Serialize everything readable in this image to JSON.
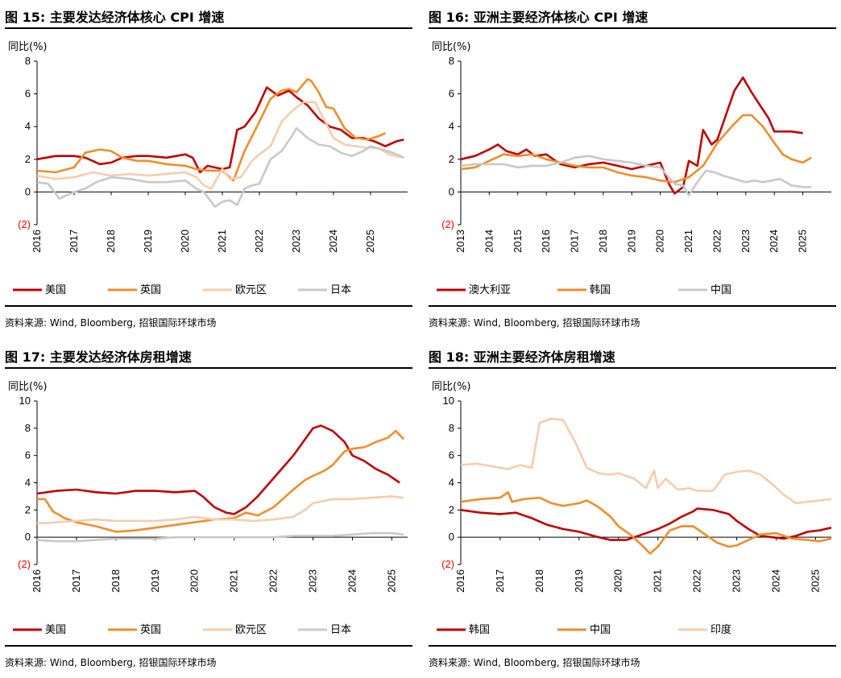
{
  "colors": {
    "red": "#C00000",
    "orange": "#F28C28",
    "peach": "#F8CBAD",
    "gray": "#C8C8C8",
    "neg": "#FF0000"
  },
  "source": "资料来源: Wind, Bloomberg, 招银国际环球市场",
  "chart_data": [
    {
      "type": "line",
      "title": "图 15: 主要发达经济体核心 CPI 增速",
      "ylabel": "同比(%)",
      "ylim": [
        -2,
        8
      ],
      "yticks": [
        8,
        6,
        4,
        2,
        0,
        -2
      ],
      "ytick_labels": [
        "8",
        "6",
        "4",
        "2",
        "0",
        "(2)"
      ],
      "xlim": [
        2016,
        2026
      ],
      "xticks": [
        "2016",
        "2017",
        "2018",
        "2019",
        "2020",
        "2021",
        "2022",
        "2023",
        "2024",
        "2025"
      ],
      "legend": "bottom",
      "series": [
        {
          "name": "美国",
          "color": "red",
          "x": [
            2016.0,
            2016.5,
            2017.0,
            2017.3,
            2017.7,
            2018.0,
            2018.3,
            2018.7,
            2019.0,
            2019.5,
            2020.0,
            2020.2,
            2020.4,
            2020.6,
            2021.0,
            2021.2,
            2021.4,
            2021.6,
            2021.9,
            2022.2,
            2022.5,
            2022.8,
            2023.0,
            2023.3,
            2023.6,
            2023.9,
            2024.2,
            2024.5,
            2024.8,
            2025.1,
            2025.4,
            2025.7,
            2025.9
          ],
          "y": [
            2.0,
            2.2,
            2.2,
            2.1,
            1.7,
            1.8,
            2.1,
            2.2,
            2.2,
            2.1,
            2.3,
            2.1,
            1.2,
            1.6,
            1.4,
            1.5,
            3.8,
            4.0,
            4.9,
            6.4,
            5.9,
            6.2,
            5.8,
            5.3,
            4.5,
            4.0,
            3.8,
            3.3,
            3.3,
            3.1,
            2.8,
            3.1,
            3.2
          ]
        },
        {
          "name": "英国",
          "color": "orange",
          "x": [
            2016.0,
            2016.5,
            2017.0,
            2017.3,
            2017.7,
            2018.0,
            2018.3,
            2018.7,
            2019.0,
            2019.5,
            2020.0,
            2020.3,
            2020.6,
            2021.0,
            2021.3,
            2021.6,
            2022.0,
            2022.3,
            2022.6,
            2022.8,
            2023.0,
            2023.3,
            2023.4,
            2023.6,
            2023.8,
            2024.0,
            2024.3,
            2024.6,
            2024.9,
            2025.2,
            2025.4
          ],
          "y": [
            1.3,
            1.2,
            1.5,
            2.4,
            2.6,
            2.5,
            2.1,
            1.9,
            1.9,
            1.7,
            1.6,
            1.4,
            1.3,
            1.3,
            0.7,
            2.5,
            4.3,
            5.7,
            6.2,
            6.3,
            6.1,
            6.9,
            6.8,
            6.1,
            5.2,
            5.1,
            3.9,
            3.3,
            3.2,
            3.4,
            3.6
          ]
        },
        {
          "name": "欧元区",
          "color": "peach",
          "x": [
            2016.0,
            2016.5,
            2017.0,
            2017.5,
            2018.0,
            2018.5,
            2019.0,
            2019.5,
            2020.0,
            2020.3,
            2020.5,
            2020.7,
            2021.0,
            2021.2,
            2021.5,
            2021.8,
            2022.0,
            2022.3,
            2022.6,
            2022.9,
            2023.2,
            2023.5,
            2023.8,
            2024.0,
            2024.3,
            2024.6,
            2024.9,
            2025.2,
            2025.5,
            2025.9
          ],
          "y": [
            1.0,
            0.8,
            0.9,
            1.2,
            1.0,
            1.1,
            1.0,
            1.1,
            1.2,
            0.9,
            0.4,
            0.2,
            1.4,
            0.8,
            0.9,
            1.9,
            2.3,
            2.8,
            4.3,
            5.0,
            5.5,
            5.5,
            4.2,
            3.3,
            2.9,
            2.8,
            2.7,
            2.7,
            2.3,
            2.1
          ]
        },
        {
          "name": "日本",
          "color": "gray",
          "x": [
            2016.0,
            2016.3,
            2016.6,
            2017.0,
            2017.3,
            2017.6,
            2018.0,
            2018.5,
            2019.0,
            2019.5,
            2020.0,
            2020.3,
            2020.5,
            2020.8,
            2021.0,
            2021.2,
            2021.4,
            2021.6,
            2021.8,
            2022.0,
            2022.3,
            2022.6,
            2022.9,
            2023.0,
            2023.3,
            2023.6,
            2023.9,
            2024.2,
            2024.5,
            2024.8,
            2025.0,
            2025.3,
            2025.6,
            2025.9
          ],
          "y": [
            0.6,
            0.5,
            -0.4,
            0.0,
            0.2,
            0.6,
            0.9,
            0.8,
            0.6,
            0.6,
            0.7,
            0.2,
            0.0,
            -0.9,
            -0.6,
            -0.5,
            -0.8,
            0.2,
            0.4,
            0.5,
            2.0,
            2.5,
            3.5,
            3.9,
            3.3,
            2.9,
            2.8,
            2.4,
            2.2,
            2.5,
            2.8,
            2.6,
            2.4,
            2.1
          ]
        }
      ]
    },
    {
      "type": "line",
      "title": "图 16: 亚洲主要经济体核心 CPI 增速",
      "ylabel": "同比(%)",
      "ylim": [
        -2,
        8
      ],
      "yticks": [
        8,
        6,
        4,
        2,
        0,
        -2
      ],
      "ytick_labels": [
        "8",
        "6",
        "4",
        "2",
        "0",
        "(2)"
      ],
      "xlim": [
        2013,
        2026
      ],
      "xticks": [
        "2013",
        "2014",
        "2015",
        "2016",
        "2017",
        "2018",
        "2019",
        "2020",
        "2021",
        "2022",
        "2023",
        "2024",
        "2025"
      ],
      "legend": "bottom",
      "series": [
        {
          "name": "澳大利亚",
          "color": "red",
          "x": [
            2013.0,
            2013.5,
            2014.0,
            2014.3,
            2014.6,
            2015.0,
            2015.3,
            2015.6,
            2016.0,
            2016.5,
            2017.0,
            2017.5,
            2018.0,
            2018.5,
            2019.0,
            2019.5,
            2020.0,
            2020.3,
            2020.5,
            2020.8,
            2021.0,
            2021.3,
            2021.5,
            2021.8,
            2022.0,
            2022.3,
            2022.6,
            2022.9,
            2023.2,
            2023.5,
            2023.8,
            2024.0,
            2024.3,
            2024.6,
            2025.0
          ],
          "y": [
            2.0,
            2.2,
            2.6,
            2.9,
            2.5,
            2.3,
            2.6,
            2.2,
            2.3,
            1.7,
            1.5,
            1.7,
            1.8,
            1.6,
            1.4,
            1.6,
            1.8,
            0.5,
            -0.1,
            0.3,
            1.9,
            1.6,
            3.8,
            2.9,
            3.2,
            4.7,
            6.2,
            7.0,
            6.1,
            5.3,
            4.5,
            3.7,
            3.7,
            3.7,
            3.6
          ]
        },
        {
          "name": "韩国",
          "color": "orange",
          "x": [
            2013.0,
            2013.5,
            2014.0,
            2014.5,
            2015.0,
            2015.5,
            2016.0,
            2016.5,
            2017.0,
            2017.5,
            2018.0,
            2018.5,
            2019.0,
            2019.5,
            2020.0,
            2020.5,
            2021.0,
            2021.5,
            2022.0,
            2022.5,
            2022.9,
            2023.2,
            2023.6,
            2024.0,
            2024.3,
            2024.6,
            2025.0,
            2025.3
          ],
          "y": [
            1.4,
            1.5,
            1.9,
            2.3,
            2.2,
            2.3,
            2.0,
            1.8,
            1.6,
            1.5,
            1.5,
            1.2,
            1.0,
            0.9,
            0.7,
            0.6,
            0.9,
            1.6,
            3.0,
            4.0,
            4.7,
            4.7,
            4.0,
            3.0,
            2.3,
            2.0,
            1.8,
            2.1
          ]
        },
        {
          "name": "中国",
          "color": "gray",
          "x": [
            2013.0,
            2013.5,
            2014.0,
            2014.5,
            2015.0,
            2015.5,
            2016.0,
            2016.5,
            2017.0,
            2017.5,
            2018.0,
            2018.5,
            2019.0,
            2019.5,
            2020.0,
            2020.5,
            2020.8,
            2021.0,
            2021.3,
            2021.6,
            2021.9,
            2022.2,
            2022.6,
            2023.0,
            2023.3,
            2023.6,
            2023.9,
            2024.2,
            2024.6,
            2025.0,
            2025.3
          ],
          "y": [
            1.6,
            1.7,
            1.7,
            1.7,
            1.5,
            1.6,
            1.6,
            1.8,
            2.1,
            2.2,
            2.0,
            1.9,
            1.8,
            1.6,
            1.5,
            0.5,
            0.4,
            -0.2,
            0.6,
            1.3,
            1.2,
            1.0,
            0.8,
            0.6,
            0.7,
            0.6,
            0.7,
            0.8,
            0.4,
            0.3,
            0.3
          ]
        }
      ]
    },
    {
      "type": "line",
      "title": "图 17: 主要发达经济体房租增速",
      "ylabel": "同比(%)",
      "ylim": [
        -2,
        10
      ],
      "yticks": [
        10,
        8,
        6,
        4,
        2,
        0,
        -2
      ],
      "ytick_labels": [
        "10",
        "8",
        "6",
        "4",
        "2",
        "0",
        "(2)"
      ],
      "xlim": [
        2016,
        2025.4
      ],
      "xticks": [
        "2016",
        "2017",
        "2018",
        "2019",
        "2020",
        "2021",
        "2022",
        "2023",
        "2024",
        "2025"
      ],
      "legend": "bottom",
      "series": [
        {
          "name": "美国",
          "color": "red",
          "x": [
            2016.0,
            2016.5,
            2017.0,
            2017.5,
            2018.0,
            2018.5,
            2019.0,
            2019.5,
            2020.0,
            2020.2,
            2020.5,
            2020.8,
            2021.0,
            2021.3,
            2021.6,
            2021.9,
            2022.2,
            2022.5,
            2022.8,
            2023.0,
            2023.2,
            2023.5,
            2023.8,
            2024.0,
            2024.3,
            2024.6,
            2024.9,
            2025.2
          ],
          "y": [
            3.2,
            3.4,
            3.5,
            3.3,
            3.2,
            3.4,
            3.4,
            3.3,
            3.4,
            3.0,
            2.2,
            1.8,
            1.7,
            2.2,
            3.0,
            4.0,
            5.0,
            6.0,
            7.2,
            8.0,
            8.2,
            7.8,
            7.0,
            6.0,
            5.6,
            5.0,
            4.6,
            4.0
          ]
        },
        {
          "name": "英国",
          "color": "orange",
          "x": [
            2016.0,
            2016.2,
            2016.4,
            2016.7,
            2017.0,
            2017.5,
            2018.0,
            2018.5,
            2019.0,
            2019.5,
            2020.0,
            2020.5,
            2021.0,
            2021.3,
            2021.6,
            2022.0,
            2022.5,
            2022.8,
            2023.0,
            2023.3,
            2023.5,
            2023.8,
            2024.0,
            2024.3,
            2024.6,
            2024.9,
            2025.1,
            2025.3
          ],
          "y": [
            2.8,
            2.8,
            1.9,
            1.4,
            1.1,
            0.8,
            0.4,
            0.5,
            0.7,
            0.9,
            1.1,
            1.3,
            1.4,
            1.8,
            1.6,
            2.2,
            3.5,
            4.2,
            4.5,
            4.9,
            5.3,
            6.3,
            6.5,
            6.6,
            7.0,
            7.3,
            7.8,
            7.2
          ]
        },
        {
          "name": "欧元区",
          "color": "peach",
          "x": [
            2016.0,
            2016.5,
            2017.0,
            2017.5,
            2018.0,
            2018.5,
            2019.0,
            2019.5,
            2020.0,
            2020.5,
            2021.0,
            2021.5,
            2022.0,
            2022.5,
            2022.8,
            2023.0,
            2023.5,
            2024.0,
            2024.5,
            2025.0,
            2025.3
          ],
          "y": [
            1.0,
            1.1,
            1.2,
            1.3,
            1.2,
            1.2,
            1.2,
            1.3,
            1.5,
            1.3,
            1.3,
            1.2,
            1.3,
            1.5,
            2.0,
            2.5,
            2.8,
            2.8,
            2.9,
            3.0,
            2.9
          ]
        },
        {
          "name": "日本",
          "color": "gray",
          "x": [
            2016.0,
            2016.5,
            2017.0,
            2017.5,
            2018.0,
            2018.5,
            2019.0,
            2019.5,
            2020.0,
            2020.5,
            2021.0,
            2021.5,
            2022.0,
            2022.5,
            2023.0,
            2023.5,
            2024.0,
            2024.5,
            2025.0,
            2025.3
          ],
          "y": [
            -0.2,
            -0.3,
            -0.3,
            -0.2,
            -0.1,
            -0.1,
            -0.1,
            0.0,
            0.0,
            0.0,
            0.0,
            0.0,
            0.0,
            0.1,
            0.1,
            0.1,
            0.2,
            0.3,
            0.3,
            0.2
          ]
        }
      ]
    },
    {
      "type": "line",
      "title": "图 18: 亚洲主要经济体房租增速",
      "ylabel": "同比(%)",
      "ylim": [
        -2,
        10
      ],
      "yticks": [
        10,
        8,
        6,
        4,
        2,
        0,
        -2
      ],
      "ytick_labels": [
        "10",
        "8",
        "6",
        "4",
        "2",
        "0",
        "(2)"
      ],
      "xlim": [
        2016,
        2025.4
      ],
      "xticks": [
        "2016",
        "2017",
        "2018",
        "2019",
        "2020",
        "2021",
        "2022",
        "2023",
        "2024",
        "2025"
      ],
      "legend": "bottom",
      "series": [
        {
          "name": "韩国",
          "color": "red",
          "x": [
            2016.0,
            2016.5,
            2017.0,
            2017.4,
            2017.8,
            2018.2,
            2018.6,
            2019.0,
            2019.5,
            2019.8,
            2020.2,
            2020.6,
            2021.0,
            2021.3,
            2021.6,
            2021.9,
            2022.0,
            2022.4,
            2022.8,
            2023.0,
            2023.3,
            2023.6,
            2023.9,
            2024.2,
            2024.5,
            2024.8,
            2025.1,
            2025.4
          ],
          "y": [
            2.0,
            1.8,
            1.7,
            1.8,
            1.4,
            0.9,
            0.6,
            0.4,
            0.0,
            -0.2,
            -0.2,
            0.2,
            0.6,
            1.0,
            1.5,
            1.9,
            2.1,
            2.0,
            1.7,
            1.2,
            0.6,
            0.1,
            0.0,
            -0.1,
            0.1,
            0.4,
            0.5,
            0.7
          ]
        },
        {
          "name": "中国",
          "color": "orange",
          "x": [
            2016.0,
            2016.5,
            2017.0,
            2017.2,
            2017.3,
            2017.6,
            2018.0,
            2018.3,
            2018.6,
            2019.0,
            2019.2,
            2019.5,
            2019.8,
            2020.0,
            2020.3,
            2020.6,
            2020.8,
            2021.0,
            2021.3,
            2021.6,
            2021.9,
            2022.2,
            2022.5,
            2022.8,
            2023.0,
            2023.3,
            2023.6,
            2024.0,
            2024.4,
            2024.8,
            2025.1,
            2025.4
          ],
          "y": [
            2.6,
            2.8,
            2.9,
            3.3,
            2.6,
            2.8,
            2.9,
            2.5,
            2.3,
            2.5,
            2.7,
            2.2,
            1.5,
            0.8,
            0.2,
            -0.6,
            -1.2,
            -0.7,
            0.5,
            0.8,
            0.8,
            0.2,
            -0.4,
            -0.7,
            -0.6,
            -0.2,
            0.2,
            0.3,
            -0.1,
            -0.2,
            -0.3,
            -0.1
          ]
        },
        {
          "name": "印度",
          "color": "peach",
          "x": [
            2016.0,
            2016.4,
            2016.8,
            2017.2,
            2017.5,
            2017.8,
            2018.0,
            2018.3,
            2018.6,
            2018.9,
            2019.2,
            2019.5,
            2019.8,
            2020.0,
            2020.4,
            2020.7,
            2020.9,
            2021.0,
            2021.2,
            2021.5,
            2021.8,
            2022.0,
            2022.4,
            2022.7,
            2023.0,
            2023.3,
            2023.6,
            2023.9,
            2024.2,
            2024.5,
            2024.8,
            2025.1,
            2025.4
          ],
          "y": [
            5.3,
            5.4,
            5.2,
            5.0,
            5.3,
            5.1,
            8.4,
            8.7,
            8.6,
            7.0,
            5.1,
            4.7,
            4.6,
            4.7,
            4.3,
            3.6,
            4.9,
            3.6,
            4.3,
            3.5,
            3.6,
            3.4,
            3.4,
            4.6,
            4.8,
            4.9,
            4.6,
            3.9,
            3.1,
            2.5,
            2.6,
            2.7,
            2.8
          ]
        }
      ]
    }
  ]
}
